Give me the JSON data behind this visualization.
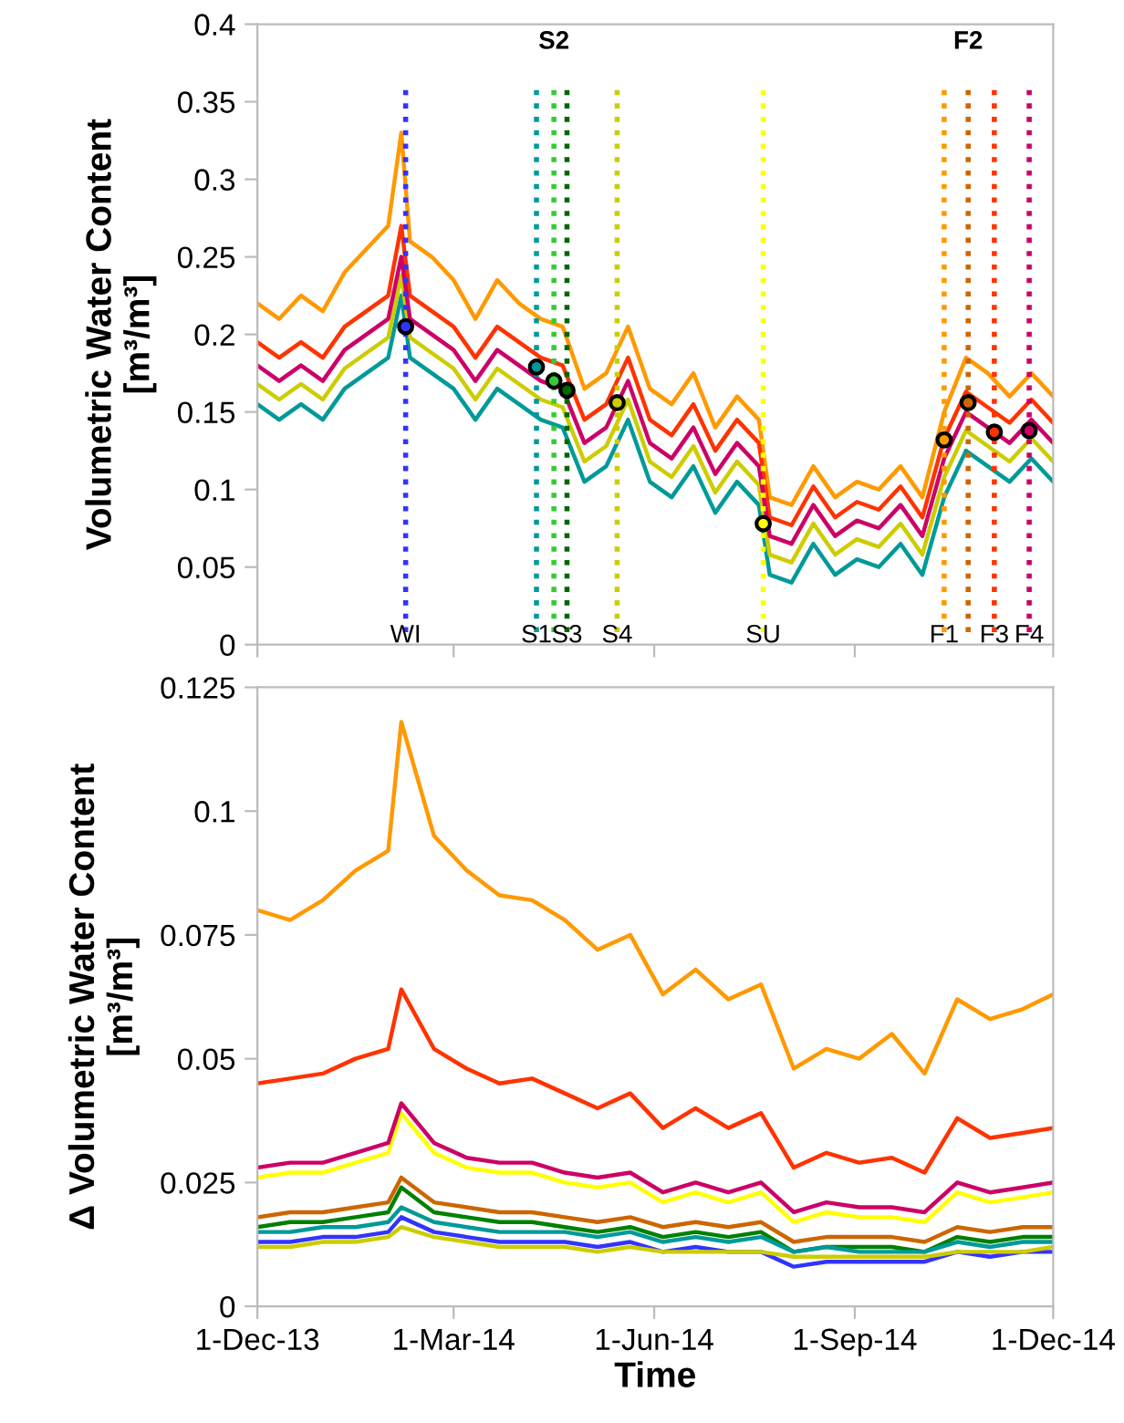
{
  "chart_data": [
    {
      "type": "line",
      "ylabel": "Volumetric Water Content\n[m³/m³]",
      "xlim": [
        "2013-12-01",
        "2014-12-01"
      ],
      "ylim": [
        0,
        0.4
      ],
      "yticks": [
        0,
        0.05,
        0.1,
        0.15,
        0.2,
        0.25,
        0.3,
        0.35,
        0.4
      ],
      "xticks": [
        {
          "value": "2013-12-01",
          "label": null
        },
        {
          "value": "2014-03-01",
          "label": null
        },
        {
          "value": "2014-06-01",
          "label": null
        },
        {
          "value": "2014-09-01",
          "label": null
        },
        {
          "value": "2014-12-01",
          "label": null
        }
      ],
      "tick_labels": "y",
      "grid": false,
      "marker": "none",
      "line_style": "solid",
      "x": [
        "2013-12-01",
        "2013-12-11",
        "2013-12-21",
        "2013-12-31",
        "2014-01-10",
        "2014-01-20",
        "2014-01-30",
        "2014-02-05",
        "2014-02-09",
        "2014-02-19",
        "2014-03-01",
        "2014-03-11",
        "2014-03-21",
        "2014-03-31",
        "2014-04-10",
        "2014-04-20",
        "2014-04-30",
        "2014-05-10",
        "2014-05-20",
        "2014-05-30",
        "2014-06-09",
        "2014-06-19",
        "2014-06-29",
        "2014-07-09",
        "2014-07-19",
        "2014-07-24",
        "2014-08-03",
        "2014-08-13",
        "2014-08-23",
        "2014-09-02",
        "2014-09-12",
        "2014-09-22",
        "2014-10-02",
        "2014-10-12",
        "2014-10-22",
        "2014-11-01",
        "2014-11-11",
        "2014-11-21",
        "2014-12-01"
      ],
      "series": [
        {
          "color": "#ff9900",
          "values": [
            0.22,
            0.21,
            0.225,
            0.215,
            0.24,
            0.255,
            0.27,
            0.33,
            0.26,
            0.25,
            0.235,
            0.21,
            0.235,
            0.22,
            0.21,
            0.205,
            0.165,
            0.175,
            0.205,
            0.165,
            0.155,
            0.175,
            0.14,
            0.16,
            0.145,
            0.095,
            0.09,
            0.115,
            0.095,
            0.105,
            0.1,
            0.115,
            0.095,
            0.15,
            0.185,
            0.175,
            0.16,
            0.175,
            0.16
          ]
        },
        {
          "color": "#ff3300",
          "values": [
            0.195,
            0.185,
            0.195,
            0.185,
            0.205,
            0.215,
            0.225,
            0.27,
            0.225,
            0.215,
            0.205,
            0.185,
            0.205,
            0.195,
            0.185,
            0.18,
            0.145,
            0.155,
            0.185,
            0.145,
            0.135,
            0.155,
            0.125,
            0.145,
            0.13,
            0.082,
            0.077,
            0.102,
            0.082,
            0.092,
            0.087,
            0.102,
            0.082,
            0.133,
            0.163,
            0.153,
            0.143,
            0.158,
            0.143
          ]
        },
        {
          "color": "#009999",
          "values": [
            0.155,
            0.145,
            0.155,
            0.145,
            0.165,
            0.175,
            0.185,
            0.225,
            0.185,
            0.175,
            0.165,
            0.145,
            0.165,
            0.155,
            0.145,
            0.14,
            0.105,
            0.115,
            0.145,
            0.105,
            0.095,
            0.115,
            0.085,
            0.105,
            0.09,
            0.045,
            0.04,
            0.065,
            0.045,
            0.055,
            0.05,
            0.065,
            0.045,
            0.095,
            0.125,
            0.115,
            0.105,
            0.12,
            0.105
          ]
        },
        {
          "color": "#cccc00",
          "values": [
            0.168,
            0.158,
            0.168,
            0.158,
            0.178,
            0.188,
            0.198,
            0.238,
            0.198,
            0.188,
            0.178,
            0.158,
            0.178,
            0.168,
            0.158,
            0.153,
            0.118,
            0.128,
            0.158,
            0.118,
            0.108,
            0.128,
            0.098,
            0.118,
            0.103,
            0.058,
            0.053,
            0.078,
            0.058,
            0.068,
            0.063,
            0.078,
            0.058,
            0.108,
            0.138,
            0.128,
            0.118,
            0.133,
            0.118
          ]
        },
        {
          "color": "#cc0066",
          "values": [
            0.18,
            0.17,
            0.18,
            0.17,
            0.19,
            0.2,
            0.21,
            0.25,
            0.21,
            0.2,
            0.19,
            0.17,
            0.19,
            0.18,
            0.17,
            0.165,
            0.13,
            0.14,
            0.17,
            0.13,
            0.12,
            0.14,
            0.11,
            0.13,
            0.115,
            0.07,
            0.065,
            0.09,
            0.07,
            0.08,
            0.075,
            0.09,
            0.07,
            0.12,
            0.15,
            0.14,
            0.13,
            0.145,
            0.13
          ]
        },
        {
          "type": "scatter",
          "marker": "circle",
          "x": [
            "2014-02-07",
            "2014-04-08",
            "2014-04-16",
            "2014-04-22",
            "2014-05-15",
            "2014-07-21",
            "2014-10-12",
            "2014-10-23",
            "2014-11-04",
            "2014-11-20"
          ],
          "values": [
            0.205,
            0.179,
            0.17,
            0.164,
            0.156,
            0.078,
            0.132,
            0.156,
            0.137,
            0.138
          ],
          "colors": [
            "#3333ff",
            "#009999",
            "#33cc33",
            "#006600",
            "#cccc00",
            "#ffff00",
            "#ff9900",
            "#cc6600",
            "#ff3300",
            "#cc0066"
          ]
        }
      ],
      "ref_lines": [
        {
          "axis": "x",
          "value": "2014-02-07",
          "label": "WI",
          "color": "#3333ff",
          "line_style": "dotted"
        },
        {
          "axis": "x",
          "value": "2014-04-08",
          "label": "S1",
          "color": "#009999",
          "line_style": "dotted"
        },
        {
          "axis": "x",
          "value": "2014-04-16",
          "label": "S2",
          "color": "#33cc33",
          "line_style": "dotted"
        },
        {
          "axis": "x",
          "value": "2014-04-22",
          "label": "S3",
          "color": "#006600",
          "line_style": "dotted"
        },
        {
          "axis": "x",
          "value": "2014-05-15",
          "label": "S4",
          "color": "#cccc00",
          "line_style": "dotted"
        },
        {
          "axis": "x",
          "value": "2014-07-21",
          "label": "SU",
          "color": "#ffff00",
          "line_style": "dotted"
        },
        {
          "axis": "x",
          "value": "2014-10-12",
          "label": "F1",
          "color": "#ff9900",
          "line_style": "dotted"
        },
        {
          "axis": "x",
          "value": "2014-10-23",
          "label": "F2",
          "color": "#cc6600",
          "line_style": "dotted"
        },
        {
          "axis": "x",
          "value": "2014-11-04",
          "label": "F3",
          "color": "#ff3300",
          "line_style": "dotted"
        },
        {
          "axis": "x",
          "value": "2014-11-20",
          "label": "F4",
          "color": "#cc0066",
          "line_style": "dotted"
        }
      ]
    },
    {
      "type": "line",
      "xlabel": "Time",
      "ylabel": "Δ Volumetric Water Content\n[m³/m³]",
      "xlim": [
        "2013-12-01",
        "2014-12-01"
      ],
      "ylim": [
        0,
        0.125
      ],
      "yticks": [
        0,
        0.025,
        0.05,
        0.075,
        0.1,
        0.125
      ],
      "xticks": [
        {
          "value": "2013-12-01",
          "label": "1-Dec-13"
        },
        {
          "value": "2014-03-01",
          "label": "1-Mar-14"
        },
        {
          "value": "2014-06-01",
          "label": "1-Jun-14"
        },
        {
          "value": "2014-09-01",
          "label": "1-Sep-14"
        },
        {
          "value": "2014-12-01",
          "label": "1-Dec-14"
        }
      ],
      "grid": false,
      "marker": "none",
      "line_style": "solid",
      "x": [
        "2013-12-01",
        "2013-12-16",
        "2013-12-31",
        "2014-01-15",
        "2014-01-30",
        "2014-02-05",
        "2014-02-20",
        "2014-03-07",
        "2014-03-22",
        "2014-04-06",
        "2014-04-21",
        "2014-05-06",
        "2014-05-21",
        "2014-06-05",
        "2014-06-20",
        "2014-07-05",
        "2014-07-20",
        "2014-08-04",
        "2014-08-19",
        "2014-09-03",
        "2014-09-18",
        "2014-10-03",
        "2014-10-18",
        "2014-11-02",
        "2014-11-17",
        "2014-12-01"
      ],
      "series": [
        {
          "color": "#ff9900",
          "values": [
            0.08,
            0.078,
            0.082,
            0.088,
            0.092,
            0.118,
            0.095,
            0.088,
            0.083,
            0.082,
            0.078,
            0.072,
            0.075,
            0.063,
            0.068,
            0.062,
            0.065,
            0.048,
            0.052,
            0.05,
            0.055,
            0.047,
            0.062,
            0.058,
            0.06,
            0.063
          ]
        },
        {
          "color": "#ff3300",
          "values": [
            0.045,
            0.046,
            0.047,
            0.05,
            0.052,
            0.064,
            0.052,
            0.048,
            0.045,
            0.046,
            0.043,
            0.04,
            0.043,
            0.036,
            0.04,
            0.036,
            0.039,
            0.028,
            0.031,
            0.029,
            0.03,
            0.027,
            0.038,
            0.034,
            0.035,
            0.036
          ]
        },
        {
          "color": "#ffff00",
          "values": [
            0.026,
            0.027,
            0.027,
            0.029,
            0.031,
            0.039,
            0.031,
            0.028,
            0.027,
            0.027,
            0.025,
            0.024,
            0.025,
            0.021,
            0.023,
            0.021,
            0.023,
            0.017,
            0.019,
            0.018,
            0.018,
            0.017,
            0.023,
            0.021,
            0.022,
            0.023
          ]
        },
        {
          "color": "#cc0066",
          "values": [
            0.028,
            0.029,
            0.029,
            0.031,
            0.033,
            0.041,
            0.033,
            0.03,
            0.029,
            0.029,
            0.027,
            0.026,
            0.027,
            0.023,
            0.025,
            0.023,
            0.025,
            0.019,
            0.021,
            0.02,
            0.02,
            0.019,
            0.025,
            0.023,
            0.024,
            0.025
          ]
        },
        {
          "color": "#cc6600",
          "values": [
            0.018,
            0.019,
            0.019,
            0.02,
            0.021,
            0.026,
            0.021,
            0.02,
            0.019,
            0.019,
            0.018,
            0.017,
            0.018,
            0.016,
            0.017,
            0.016,
            0.017,
            0.013,
            0.014,
            0.014,
            0.014,
            0.013,
            0.016,
            0.015,
            0.016,
            0.016
          ]
        },
        {
          "color": "#008000",
          "values": [
            0.016,
            0.017,
            0.017,
            0.018,
            0.019,
            0.024,
            0.019,
            0.018,
            0.017,
            0.017,
            0.016,
            0.015,
            0.016,
            0.014,
            0.015,
            0.014,
            0.015,
            0.011,
            0.012,
            0.012,
            0.012,
            0.011,
            0.014,
            0.013,
            0.014,
            0.014
          ]
        },
        {
          "color": "#009999",
          "values": [
            0.015,
            0.015,
            0.016,
            0.016,
            0.017,
            0.02,
            0.017,
            0.016,
            0.015,
            0.015,
            0.015,
            0.014,
            0.015,
            0.013,
            0.014,
            0.013,
            0.014,
            0.011,
            0.012,
            0.011,
            0.011,
            0.011,
            0.013,
            0.012,
            0.013,
            0.013
          ]
        },
        {
          "color": "#3333ff",
          "values": [
            0.013,
            0.013,
            0.014,
            0.014,
            0.015,
            0.018,
            0.015,
            0.014,
            0.013,
            0.013,
            0.013,
            0.012,
            0.013,
            0.011,
            0.012,
            0.011,
            0.011,
            0.008,
            0.009,
            0.009,
            0.009,
            0.009,
            0.011,
            0.01,
            0.011,
            0.011
          ]
        },
        {
          "color": "#cccc00",
          "values": [
            0.012,
            0.012,
            0.013,
            0.013,
            0.014,
            0.016,
            0.014,
            0.013,
            0.012,
            0.012,
            0.012,
            0.011,
            0.012,
            0.011,
            0.011,
            0.011,
            0.011,
            0.01,
            0.01,
            0.01,
            0.01,
            0.01,
            0.011,
            0.011,
            0.011,
            0.012
          ]
        }
      ]
    }
  ]
}
